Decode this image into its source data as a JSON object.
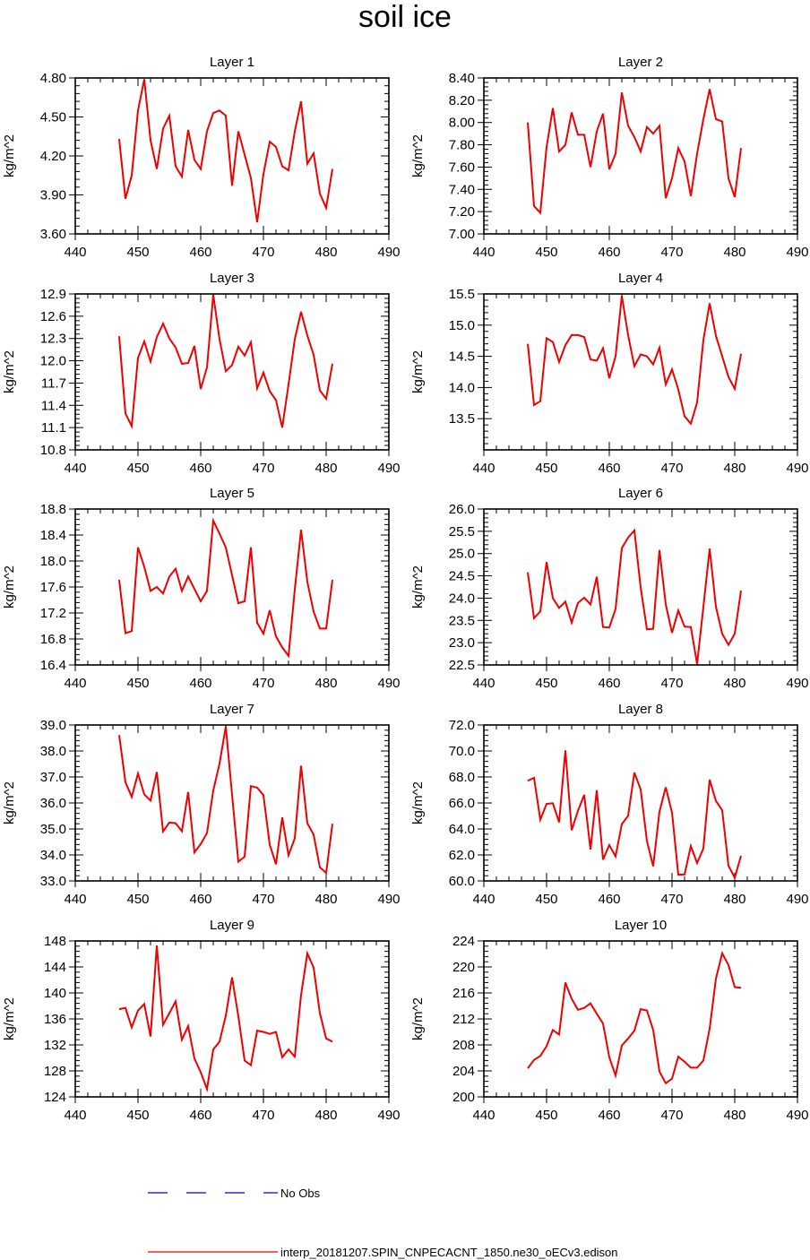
{
  "page": {
    "title": "soil ice"
  },
  "legend": {
    "obs_label": "No Obs",
    "model_label": "interp_20181207.SPIN_CNPECACNT_1850.ne30_oECv3.edison",
    "obs_color": "#0000cc",
    "model_color": "#ee0000"
  },
  "chart_data": [
    {
      "type": "line",
      "title": "Layer 1",
      "ylabel": "kg/m^2",
      "xlim": [
        440,
        490
      ],
      "xticks": [
        440,
        450,
        460,
        470,
        480,
        490
      ],
      "ylim": [
        3.6,
        4.8
      ],
      "yticks": [
        "3.60",
        "3.90",
        "4.20",
        "4.50",
        "4.80"
      ],
      "x": [
        447,
        448,
        449,
        450,
        451,
        452,
        453,
        454,
        455,
        456,
        457,
        458,
        459,
        460,
        461,
        462,
        463,
        464,
        465,
        466,
        467,
        468,
        469,
        470,
        471,
        472,
        473,
        474,
        475,
        476,
        477,
        478,
        479,
        480,
        481
      ],
      "series": [
        {
          "values": [
            4.33,
            3.87,
            4.05,
            4.55,
            4.79,
            4.32,
            4.1,
            4.41,
            4.51,
            4.12,
            4.04,
            4.4,
            4.17,
            4.1,
            4.39,
            4.53,
            4.55,
            4.51,
            3.97,
            4.39,
            4.21,
            4.03,
            3.69,
            4.06,
            4.31,
            4.27,
            4.12,
            4.09,
            4.39,
            4.62,
            4.14,
            4.22,
            3.91,
            3.8,
            4.1
          ]
        }
      ]
    },
    {
      "type": "line",
      "title": "Layer 2",
      "ylabel": "kg/m^2",
      "xlim": [
        440,
        490
      ],
      "xticks": [
        440,
        450,
        460,
        470,
        480,
        490
      ],
      "ylim": [
        7.0,
        8.4
      ],
      "yticks": [
        "7.00",
        "7.20",
        "7.40",
        "7.60",
        "7.80",
        "8.00",
        "8.20",
        "8.40"
      ],
      "x": [
        447,
        448,
        449,
        450,
        451,
        452,
        453,
        454,
        455,
        456,
        457,
        458,
        459,
        460,
        461,
        462,
        463,
        464,
        465,
        466,
        467,
        468,
        469,
        470,
        471,
        472,
        473,
        474,
        475,
        476,
        477,
        478,
        479,
        480,
        481
      ],
      "series": [
        {
          "values": [
            8.0,
            7.25,
            7.19,
            7.78,
            8.13,
            7.74,
            7.8,
            8.09,
            7.89,
            7.89,
            7.6,
            7.92,
            8.08,
            7.58,
            7.72,
            8.27,
            7.97,
            7.87,
            7.74,
            7.96,
            7.9,
            7.97,
            7.32,
            7.5,
            7.77,
            7.65,
            7.34,
            7.72,
            8.03,
            8.3,
            8.03,
            8.01,
            7.5,
            7.33,
            7.77
          ]
        }
      ]
    },
    {
      "type": "line",
      "title": "Layer 3",
      "ylabel": "kg/m^2",
      "xlim": [
        440,
        490
      ],
      "xticks": [
        440,
        450,
        460,
        470,
        480,
        490
      ],
      "ylim": [
        10.8,
        12.9
      ],
      "yticks": [
        "10.8",
        "11.1",
        "11.4",
        "11.7",
        "12.0",
        "12.3",
        "12.6",
        "12.9"
      ],
      "x": [
        447,
        448,
        449,
        450,
        451,
        452,
        453,
        454,
        455,
        456,
        457,
        458,
        459,
        460,
        461,
        462,
        463,
        464,
        465,
        466,
        467,
        468,
        469,
        470,
        471,
        472,
        473,
        474,
        475,
        476,
        477,
        478,
        479,
        480,
        481
      ],
      "series": [
        {
          "values": [
            12.33,
            11.29,
            11.12,
            12.04,
            12.26,
            11.99,
            12.32,
            12.5,
            12.3,
            12.18,
            11.96,
            11.97,
            12.2,
            11.62,
            11.91,
            12.89,
            12.29,
            11.86,
            11.94,
            12.19,
            12.07,
            12.25,
            11.63,
            11.84,
            11.59,
            11.47,
            11.1,
            11.68,
            12.29,
            12.66,
            12.34,
            12.08,
            11.6,
            11.49,
            11.96
          ]
        }
      ]
    },
    {
      "type": "line",
      "title": "Layer 4",
      "ylabel": "kg/m^2",
      "xlim": [
        440,
        490
      ],
      "xticks": [
        440,
        450,
        460,
        470,
        480,
        490
      ],
      "ylim": [
        13.0,
        15.5
      ],
      "yticks": [
        "13.5",
        "14.0",
        "14.5",
        "15.0",
        "15.5"
      ],
      "x": [
        447,
        448,
        449,
        450,
        451,
        452,
        453,
        454,
        455,
        456,
        457,
        458,
        459,
        460,
        461,
        462,
        463,
        464,
        465,
        466,
        467,
        468,
        469,
        470,
        471,
        472,
        473,
        474,
        475,
        476,
        477,
        478,
        479,
        480,
        481
      ],
      "series": [
        {
          "values": [
            14.7,
            13.72,
            13.78,
            14.79,
            14.73,
            14.41,
            14.68,
            14.84,
            14.84,
            14.81,
            14.45,
            14.43,
            14.63,
            14.15,
            14.5,
            15.47,
            14.84,
            14.34,
            14.53,
            14.5,
            14.37,
            14.64,
            14.05,
            14.29,
            13.97,
            13.54,
            13.42,
            13.76,
            14.76,
            15.35,
            14.83,
            14.5,
            14.17,
            13.98,
            14.54
          ]
        }
      ]
    },
    {
      "type": "line",
      "title": "Layer 5",
      "ylabel": "kg/m^2",
      "xlim": [
        440,
        490
      ],
      "xticks": [
        440,
        450,
        460,
        470,
        480,
        490
      ],
      "ylim": [
        16.4,
        18.8
      ],
      "yticks": [
        "16.4",
        "16.8",
        "17.2",
        "17.6",
        "18.0",
        "18.4",
        "18.8"
      ],
      "x": [
        447,
        448,
        449,
        450,
        451,
        452,
        453,
        454,
        455,
        456,
        457,
        458,
        459,
        460,
        461,
        462,
        463,
        464,
        465,
        466,
        467,
        468,
        469,
        470,
        471,
        472,
        473,
        474,
        475,
        476,
        477,
        478,
        479,
        480,
        481
      ],
      "series": [
        {
          "values": [
            17.71,
            16.89,
            16.92,
            18.21,
            17.91,
            17.54,
            17.6,
            17.5,
            17.76,
            17.88,
            17.54,
            17.76,
            17.57,
            17.38,
            17.54,
            18.62,
            18.42,
            18.21,
            17.78,
            17.35,
            17.38,
            18.21,
            17.05,
            16.88,
            17.24,
            16.84,
            16.67,
            16.54,
            17.56,
            18.48,
            17.68,
            17.22,
            16.96,
            16.96,
            17.71
          ]
        }
      ]
    },
    {
      "type": "line",
      "title": "Layer 6",
      "ylabel": "kg/m^2",
      "xlim": [
        440,
        490
      ],
      "xticks": [
        440,
        450,
        460,
        470,
        480,
        490
      ],
      "ylim": [
        22.5,
        26.0
      ],
      "yticks": [
        "22.5",
        "23.0",
        "23.5",
        "24.0",
        "24.5",
        "25.0",
        "25.5",
        "26.0"
      ],
      "x": [
        447,
        448,
        449,
        450,
        451,
        452,
        453,
        454,
        455,
        456,
        457,
        458,
        459,
        460,
        461,
        462,
        463,
        464,
        465,
        466,
        467,
        468,
        469,
        470,
        471,
        472,
        473,
        474,
        475,
        476,
        477,
        478,
        479,
        480,
        481
      ],
      "series": [
        {
          "values": [
            24.58,
            23.55,
            23.7,
            24.81,
            24.0,
            23.78,
            23.92,
            23.45,
            23.89,
            24.01,
            23.86,
            24.48,
            23.35,
            23.34,
            23.76,
            25.12,
            25.36,
            25.52,
            24.24,
            23.3,
            23.31,
            25.08,
            23.86,
            23.22,
            23.72,
            23.36,
            23.35,
            22.52,
            23.8,
            25.11,
            23.81,
            23.2,
            22.95,
            23.2,
            24.17
          ]
        }
      ]
    },
    {
      "type": "line",
      "title": "Layer 7",
      "ylabel": "kg/m^2",
      "xlim": [
        440,
        490
      ],
      "xticks": [
        440,
        450,
        460,
        470,
        480,
        490
      ],
      "ylim": [
        33.0,
        39.0
      ],
      "yticks": [
        "33.0",
        "34.0",
        "35.0",
        "36.0",
        "37.0",
        "38.0",
        "39.0"
      ],
      "x": [
        447,
        448,
        449,
        450,
        451,
        452,
        453,
        454,
        455,
        456,
        457,
        458,
        459,
        460,
        461,
        462,
        463,
        464,
        465,
        466,
        467,
        468,
        469,
        470,
        471,
        472,
        473,
        474,
        475,
        476,
        477,
        478,
        479,
        480,
        481
      ],
      "series": [
        {
          "values": [
            38.61,
            36.8,
            36.23,
            37.13,
            36.33,
            36.09,
            37.19,
            34.9,
            35.25,
            35.22,
            34.91,
            36.42,
            34.1,
            34.42,
            34.84,
            36.48,
            37.51,
            38.94,
            36.31,
            33.74,
            33.93,
            36.65,
            36.59,
            36.3,
            34.4,
            33.64,
            35.44,
            33.99,
            34.64,
            37.43,
            35.22,
            34.78,
            33.52,
            33.31,
            35.2
          ]
        }
      ]
    },
    {
      "type": "line",
      "title": "Layer 8",
      "ylabel": "kg/m^2",
      "xlim": [
        440,
        490
      ],
      "xticks": [
        440,
        450,
        460,
        470,
        480,
        490
      ],
      "ylim": [
        60.0,
        72.0
      ],
      "yticks": [
        "60.0",
        "62.0",
        "64.0",
        "66.0",
        "68.0",
        "70.0",
        "72.0"
      ],
      "x": [
        447,
        448,
        449,
        450,
        451,
        452,
        453,
        454,
        455,
        456,
        457,
        458,
        459,
        460,
        461,
        462,
        463,
        464,
        465,
        466,
        467,
        468,
        469,
        470,
        471,
        472,
        473,
        474,
        475,
        476,
        477,
        478,
        479,
        480,
        481
      ],
      "series": [
        {
          "values": [
            67.7,
            67.93,
            64.71,
            65.93,
            65.98,
            64.52,
            70.05,
            63.9,
            65.4,
            66.62,
            62.42,
            66.97,
            61.64,
            62.76,
            61.89,
            64.37,
            65.01,
            68.33,
            67.04,
            63.07,
            61.13,
            65.33,
            67.21,
            65.26,
            60.48,
            60.5,
            62.69,
            61.38,
            62.5,
            67.79,
            66.16,
            65.44,
            61.17,
            60.25,
            61.93
          ]
        }
      ]
    },
    {
      "type": "line",
      "title": "Layer 9",
      "ylabel": "kg/m^2",
      "xlim": [
        440,
        490
      ],
      "xticks": [
        440,
        450,
        460,
        470,
        480,
        490
      ],
      "ylim": [
        124,
        148
      ],
      "yticks": [
        "124",
        "128",
        "132",
        "136",
        "140",
        "144",
        "148"
      ],
      "x": [
        447,
        448,
        449,
        450,
        451,
        452,
        453,
        454,
        455,
        456,
        457,
        458,
        459,
        460,
        461,
        462,
        463,
        464,
        465,
        466,
        467,
        468,
        469,
        470,
        471,
        472,
        473,
        474,
        475,
        476,
        477,
        478,
        479,
        480,
        481
      ],
      "series": [
        {
          "values": [
            137.5,
            137.7,
            134.7,
            137.3,
            138.3,
            133.3,
            147.3,
            135.1,
            136.9,
            138.7,
            132.8,
            134.9,
            129.9,
            127.8,
            125.2,
            131.3,
            132.5,
            136.5,
            142.4,
            136.4,
            129.6,
            128.9,
            134.2,
            134.0,
            133.7,
            134.0,
            130.1,
            131.3,
            130.2,
            139.7,
            146.1,
            143.9,
            136.9,
            133.0,
            132.5
          ]
        }
      ]
    },
    {
      "type": "line",
      "title": "Layer 10",
      "ylabel": "kg/m^2",
      "xlim": [
        440,
        490
      ],
      "xticks": [
        440,
        450,
        460,
        470,
        480,
        490
      ],
      "ylim": [
        200,
        224
      ],
      "yticks": [
        "200",
        "204",
        "208",
        "212",
        "216",
        "220",
        "224"
      ],
      "x": [
        447,
        448,
        449,
        450,
        451,
        452,
        453,
        454,
        455,
        456,
        457,
        458,
        459,
        460,
        461,
        462,
        463,
        464,
        465,
        466,
        467,
        468,
        469,
        470,
        471,
        472,
        473,
        474,
        475,
        476,
        477,
        478,
        479,
        480,
        481
      ],
      "series": [
        {
          "values": [
            204.4,
            205.7,
            206.3,
            207.8,
            210.3,
            209.6,
            217.6,
            215.1,
            213.4,
            213.7,
            214.4,
            212.8,
            211.3,
            206.1,
            203.3,
            207.9,
            209.0,
            210.2,
            213.5,
            213.3,
            210.3,
            203.9,
            202.1,
            202.8,
            206.2,
            205.4,
            204.5,
            204.5,
            205.6,
            210.5,
            218.2,
            222.1,
            220.3,
            216.9,
            216.8
          ]
        }
      ]
    }
  ]
}
